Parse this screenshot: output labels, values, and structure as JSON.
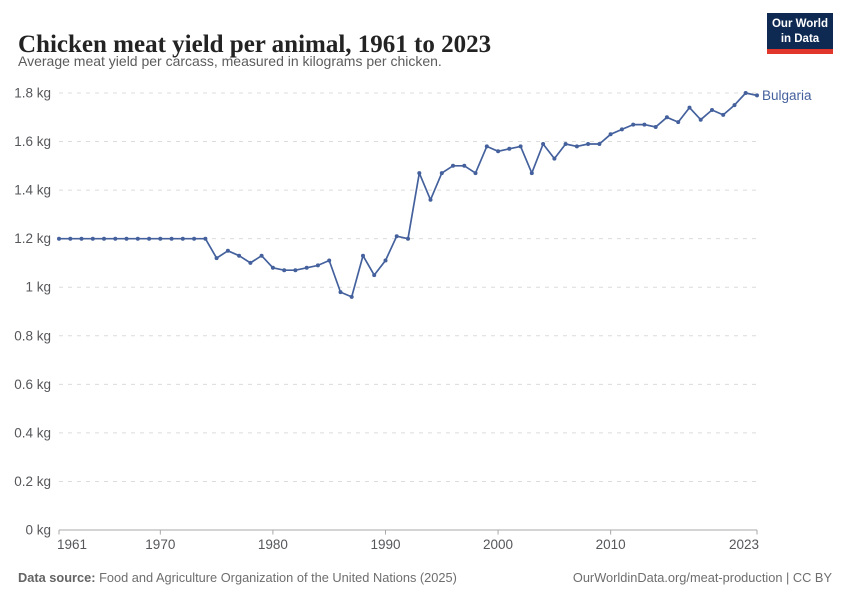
{
  "header": {
    "title": "Chicken meat yield per animal, 1961 to 2023",
    "subtitle": "Average meat yield per carcass, measured in kilograms per chicken."
  },
  "logo": {
    "line1": "Our World",
    "line2": "in Data",
    "bg_color": "#0f2a52",
    "stripe_color": "#e0362c"
  },
  "chart_data": {
    "type": "line",
    "title": "Chicken meat yield per animal, 1961 to 2023",
    "subtitle": "Average meat yield per carcass, measured in kilograms per chicken.",
    "unit": "kg",
    "grid": "horizontal-dashed",
    "legend_position": "end-of-line-label",
    "xlim": [
      1961,
      2023
    ],
    "ylim": [
      0,
      1.8
    ],
    "xticks": [
      1961,
      1970,
      1980,
      1990,
      2000,
      2010,
      2023
    ],
    "xtick_labels": [
      "1961",
      "1970",
      "1980",
      "1990",
      "2000",
      "2010",
      "2023"
    ],
    "yticks": [
      0,
      0.2,
      0.4,
      0.6,
      0.8,
      1,
      1.2,
      1.4,
      1.6,
      1.8
    ],
    "ytick_labels": [
      "0 kg",
      "0.2 kg",
      "0.4 kg",
      "0.6 kg",
      "0.8 kg",
      "1 kg",
      "1.2 kg",
      "1.4 kg",
      "1.6 kg",
      "1.8 kg"
    ],
    "x": [
      1961,
      1962,
      1963,
      1964,
      1965,
      1966,
      1967,
      1968,
      1969,
      1970,
      1971,
      1972,
      1973,
      1974,
      1975,
      1976,
      1977,
      1978,
      1979,
      1980,
      1981,
      1982,
      1983,
      1984,
      1985,
      1986,
      1987,
      1988,
      1989,
      1990,
      1991,
      1992,
      1993,
      1994,
      1995,
      1996,
      1997,
      1998,
      1999,
      2000,
      2001,
      2002,
      2003,
      2004,
      2005,
      2006,
      2007,
      2008,
      2009,
      2010,
      2011,
      2012,
      2013,
      2014,
      2015,
      2016,
      2017,
      2018,
      2019,
      2020,
      2021,
      2022,
      2023
    ],
    "series": [
      {
        "name": "Bulgaria",
        "color": "#44619d",
        "values": [
          1.2,
          1.2,
          1.2,
          1.2,
          1.2,
          1.2,
          1.2,
          1.2,
          1.2,
          1.2,
          1.2,
          1.2,
          1.2,
          1.2,
          1.12,
          1.15,
          1.13,
          1.1,
          1.13,
          1.08,
          1.07,
          1.07,
          1.08,
          1.09,
          1.11,
          0.98,
          0.96,
          1.13,
          1.05,
          1.11,
          1.21,
          1.2,
          1.47,
          1.36,
          1.47,
          1.5,
          1.5,
          1.47,
          1.58,
          1.56,
          1.57,
          1.58,
          1.47,
          1.59,
          1.53,
          1.59,
          1.58,
          1.59,
          1.59,
          1.63,
          1.65,
          1.67,
          1.67,
          1.66,
          1.7,
          1.68,
          1.74,
          1.69,
          1.73,
          1.71,
          1.75,
          1.8,
          1.79
        ]
      }
    ],
    "colors": {
      "gridline": "#dcdcdc",
      "axis": "#a8a8a8",
      "tick_text": "#56575b"
    }
  },
  "footer": {
    "datasource_label": "Data source:",
    "datasource_text": " Food and Agriculture Organization of the United Nations (2025)",
    "url": "OurWorldinData.org/meat-production",
    "separator": " | ",
    "license": "CC BY"
  }
}
